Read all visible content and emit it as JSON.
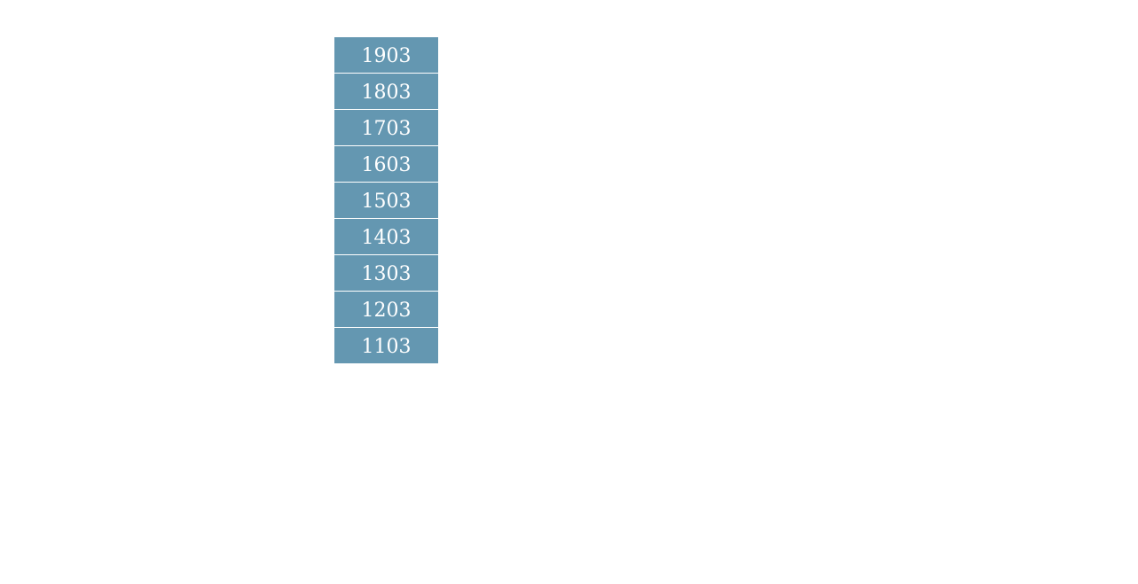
{
  "colors": {
    "cell_background": "#6497b1",
    "cell_text": "#ffffff"
  },
  "items": [
    "1903",
    "1803",
    "1703",
    "1603",
    "1503",
    "1403",
    "1303",
    "1203",
    "1103"
  ]
}
